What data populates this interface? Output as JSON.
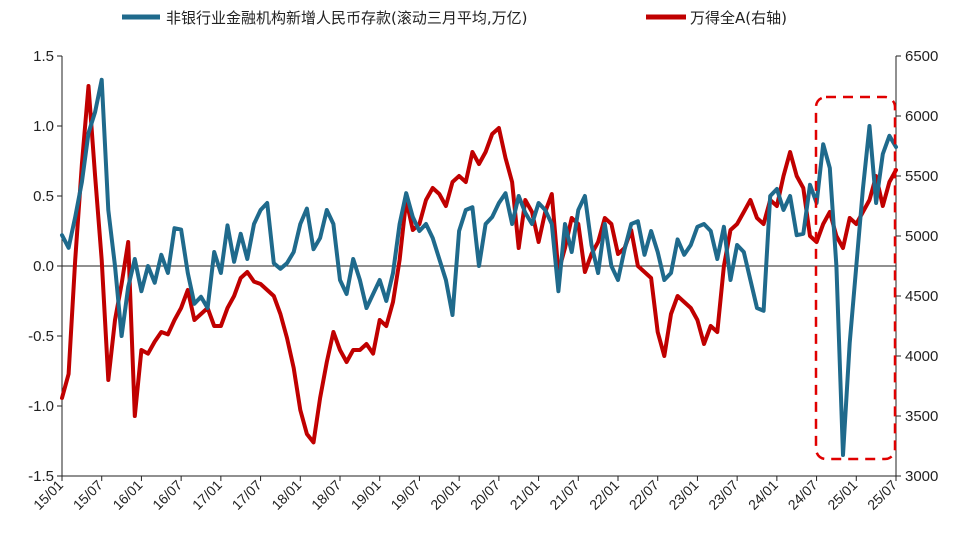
{
  "chart_data": {
    "type": "line",
    "legend_position": "top",
    "colors": {
      "deposits": "#1f6a8c",
      "index": "#c00000",
      "highlight": "#e00000"
    },
    "series": [
      {
        "name": "非银行业金融机构新增人民币存款(滚动三月平均,万亿)",
        "axis": "left",
        "x": [
          0,
          1,
          2,
          3,
          4,
          5,
          6,
          7,
          8,
          9,
          10,
          11,
          12,
          13,
          14,
          15,
          16,
          17,
          18,
          19,
          20,
          21,
          22,
          23,
          24,
          25,
          26,
          27,
          28,
          29,
          30,
          31,
          32,
          33,
          34,
          35,
          36,
          37,
          38,
          39,
          40,
          41,
          42,
          43,
          44,
          45,
          46,
          47,
          48,
          49,
          50,
          51,
          52,
          53,
          54,
          55,
          56,
          57,
          58,
          59,
          60,
          61,
          62,
          63,
          64,
          65,
          66,
          67,
          68,
          69,
          70,
          71,
          72,
          73,
          74,
          75,
          76,
          77,
          78,
          79,
          80,
          81,
          82,
          83,
          84,
          85,
          86,
          87,
          88,
          89,
          90,
          91,
          92,
          93,
          94,
          95,
          96,
          97,
          98,
          99,
          100,
          101,
          102,
          103,
          104,
          105,
          106,
          107,
          108,
          109,
          110,
          111,
          112,
          113,
          114,
          115,
          116,
          117,
          118,
          119,
          120,
          121,
          122,
          123,
          124,
          125,
          126
        ],
        "values": [
          0.22,
          0.13,
          0.35,
          0.6,
          0.95,
          1.1,
          1.33,
          0.4,
          0.0,
          -0.5,
          -0.15,
          0.05,
          -0.18,
          0.0,
          -0.12,
          0.08,
          -0.05,
          0.27,
          0.26,
          -0.05,
          -0.27,
          -0.22,
          -0.3,
          0.1,
          -0.05,
          0.29,
          0.03,
          0.23,
          0.05,
          0.3,
          0.4,
          0.45,
          0.02,
          -0.02,
          0.02,
          0.1,
          0.3,
          0.41,
          0.12,
          0.2,
          0.4,
          0.3,
          -0.1,
          -0.2,
          0.05,
          -0.1,
          -0.3,
          -0.2,
          -0.1,
          -0.25,
          -0.05,
          0.3,
          0.52,
          0.35,
          0.25,
          0.3,
          0.2,
          0.05,
          -0.1,
          -0.35,
          0.25,
          0.4,
          0.42,
          0.0,
          0.3,
          0.35,
          0.45,
          0.52,
          0.3,
          0.5,
          0.38,
          0.3,
          0.45,
          0.4,
          0.3,
          -0.18,
          0.3,
          0.1,
          0.4,
          0.5,
          0.15,
          -0.05,
          0.3,
          0.0,
          -0.1,
          0.12,
          0.3,
          0.32,
          0.08,
          0.25,
          0.1,
          -0.1,
          -0.05,
          0.19,
          0.08,
          0.15,
          0.28,
          0.3,
          0.25,
          0.05,
          0.28,
          -0.1,
          0.15,
          0.1,
          -0.1,
          -0.3,
          -0.32,
          0.5,
          0.55,
          0.4,
          0.5,
          0.22,
          0.23,
          0.58,
          0.45,
          0.87,
          0.7,
          0.0,
          -1.35,
          -0.55,
          0.0,
          0.55,
          1.0,
          0.45,
          0.8,
          0.93,
          0.85
        ],
        "xy": []
      },
      {
        "name": "万得全A(右轴)",
        "axis": "right",
        "x": [
          0,
          1,
          2,
          3,
          4,
          5,
          6,
          7,
          8,
          9,
          10,
          11,
          12,
          13,
          14,
          15,
          16,
          17,
          18,
          19,
          20,
          21,
          22,
          23,
          24,
          25,
          26,
          27,
          28,
          29,
          30,
          31,
          32,
          33,
          34,
          35,
          36,
          37,
          38,
          39,
          40,
          41,
          42,
          43,
          44,
          45,
          46,
          47,
          48,
          49,
          50,
          51,
          52,
          53,
          54,
          55,
          56,
          57,
          58,
          59,
          60,
          61,
          62,
          63,
          64,
          65,
          66,
          67,
          68,
          69,
          70,
          71,
          72,
          73,
          74,
          75,
          76,
          77,
          78,
          79,
          80,
          81,
          82,
          83,
          84,
          85,
          86,
          87,
          88,
          89,
          90,
          91,
          92,
          93,
          94,
          95,
          96,
          97,
          98,
          99,
          100,
          101,
          102,
          103,
          104,
          105,
          106,
          107,
          108,
          109,
          110,
          111,
          112,
          113,
          114,
          115,
          116,
          117,
          118,
          119,
          120,
          121,
          122,
          123,
          124,
          125,
          126
        ],
        "values": [
          3650,
          3850,
          4800,
          5600,
          6250,
          5500,
          4800,
          3800,
          4300,
          4600,
          4950,
          3500,
          4050,
          4020,
          4120,
          4200,
          4180,
          4300,
          4400,
          4550,
          4300,
          4350,
          4400,
          4250,
          4250,
          4400,
          4500,
          4650,
          4700,
          4620,
          4600,
          4550,
          4500,
          4350,
          4150,
          3900,
          3550,
          3350,
          3280,
          3650,
          3950,
          4200,
          4050,
          3950,
          4050,
          4050,
          4100,
          4020,
          4300,
          4250,
          4450,
          4800,
          5300,
          5050,
          5100,
          5300,
          5400,
          5350,
          5250,
          5450,
          5500,
          5450,
          5700,
          5600,
          5700,
          5850,
          5900,
          5650,
          5450,
          4900,
          5300,
          5200,
          4950,
          5200,
          5350,
          4700,
          4900,
          5150,
          5100,
          4700,
          4850,
          4950,
          5150,
          5100,
          4850,
          4900,
          5050,
          4750,
          4700,
          4650,
          4200,
          4000,
          4350,
          4500,
          4450,
          4400,
          4300,
          4100,
          4250,
          4200,
          4750,
          5050,
          5100,
          5200,
          5300,
          5150,
          5100,
          5300,
          5250,
          5500,
          5700,
          5500,
          5400,
          5000,
          4950,
          5100,
          5200,
          5000,
          4900,
          5150,
          5100,
          5200,
          5300,
          5500,
          5250,
          5450,
          5550
        ],
        "xy": []
      }
    ],
    "x_tick_labels": [
      "15/01",
      "15/07",
      "16/01",
      "16/07",
      "17/01",
      "17/07",
      "18/01",
      "18/07",
      "19/01",
      "19/07",
      "20/01",
      "20/07",
      "21/01",
      "21/07",
      "22/01",
      "22/07",
      "23/01",
      "23/07",
      "24/01",
      "24/07",
      "25/01",
      "25/07"
    ],
    "y_left": {
      "min": -1.5,
      "max": 1.5,
      "ticks": [
        "-1.5",
        "-1.0",
        "-0.5",
        "0.0",
        "0.5",
        "1.0",
        "1.5"
      ]
    },
    "y_right": {
      "min": 3000,
      "max": 6500,
      "ticks": [
        "3000",
        "3500",
        "4000",
        "4500",
        "5000",
        "5500",
        "6000",
        "6500"
      ]
    },
    "annotation": {
      "type": "dashed-box",
      "description": "highlight 2024/10-2025/07"
    },
    "grid": false
  }
}
